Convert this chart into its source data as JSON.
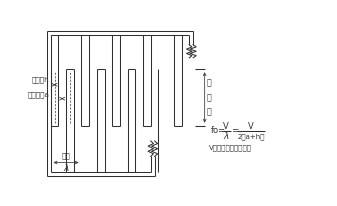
{
  "bg_color": "#ffffff",
  "line_color": "#303030",
  "fig_width": 3.37,
  "fig_height": 2.06,
  "dpi": 100,
  "label_denkyoku_haba": "電極幅h",
  "label_denkyoku_kuki": "電極空隙a",
  "label_hacho": "波長",
  "label_lambda": "λ",
  "label_kosahaba": "交\n叉\n幅",
  "label_v_note": "V：表面波の伝搬速度",
  "fo_text": "fo=",
  "v_top": "V",
  "lambda_bot": "λ",
  "eq": "=",
  "v_top2": "V",
  "denom": "2（a+h）"
}
